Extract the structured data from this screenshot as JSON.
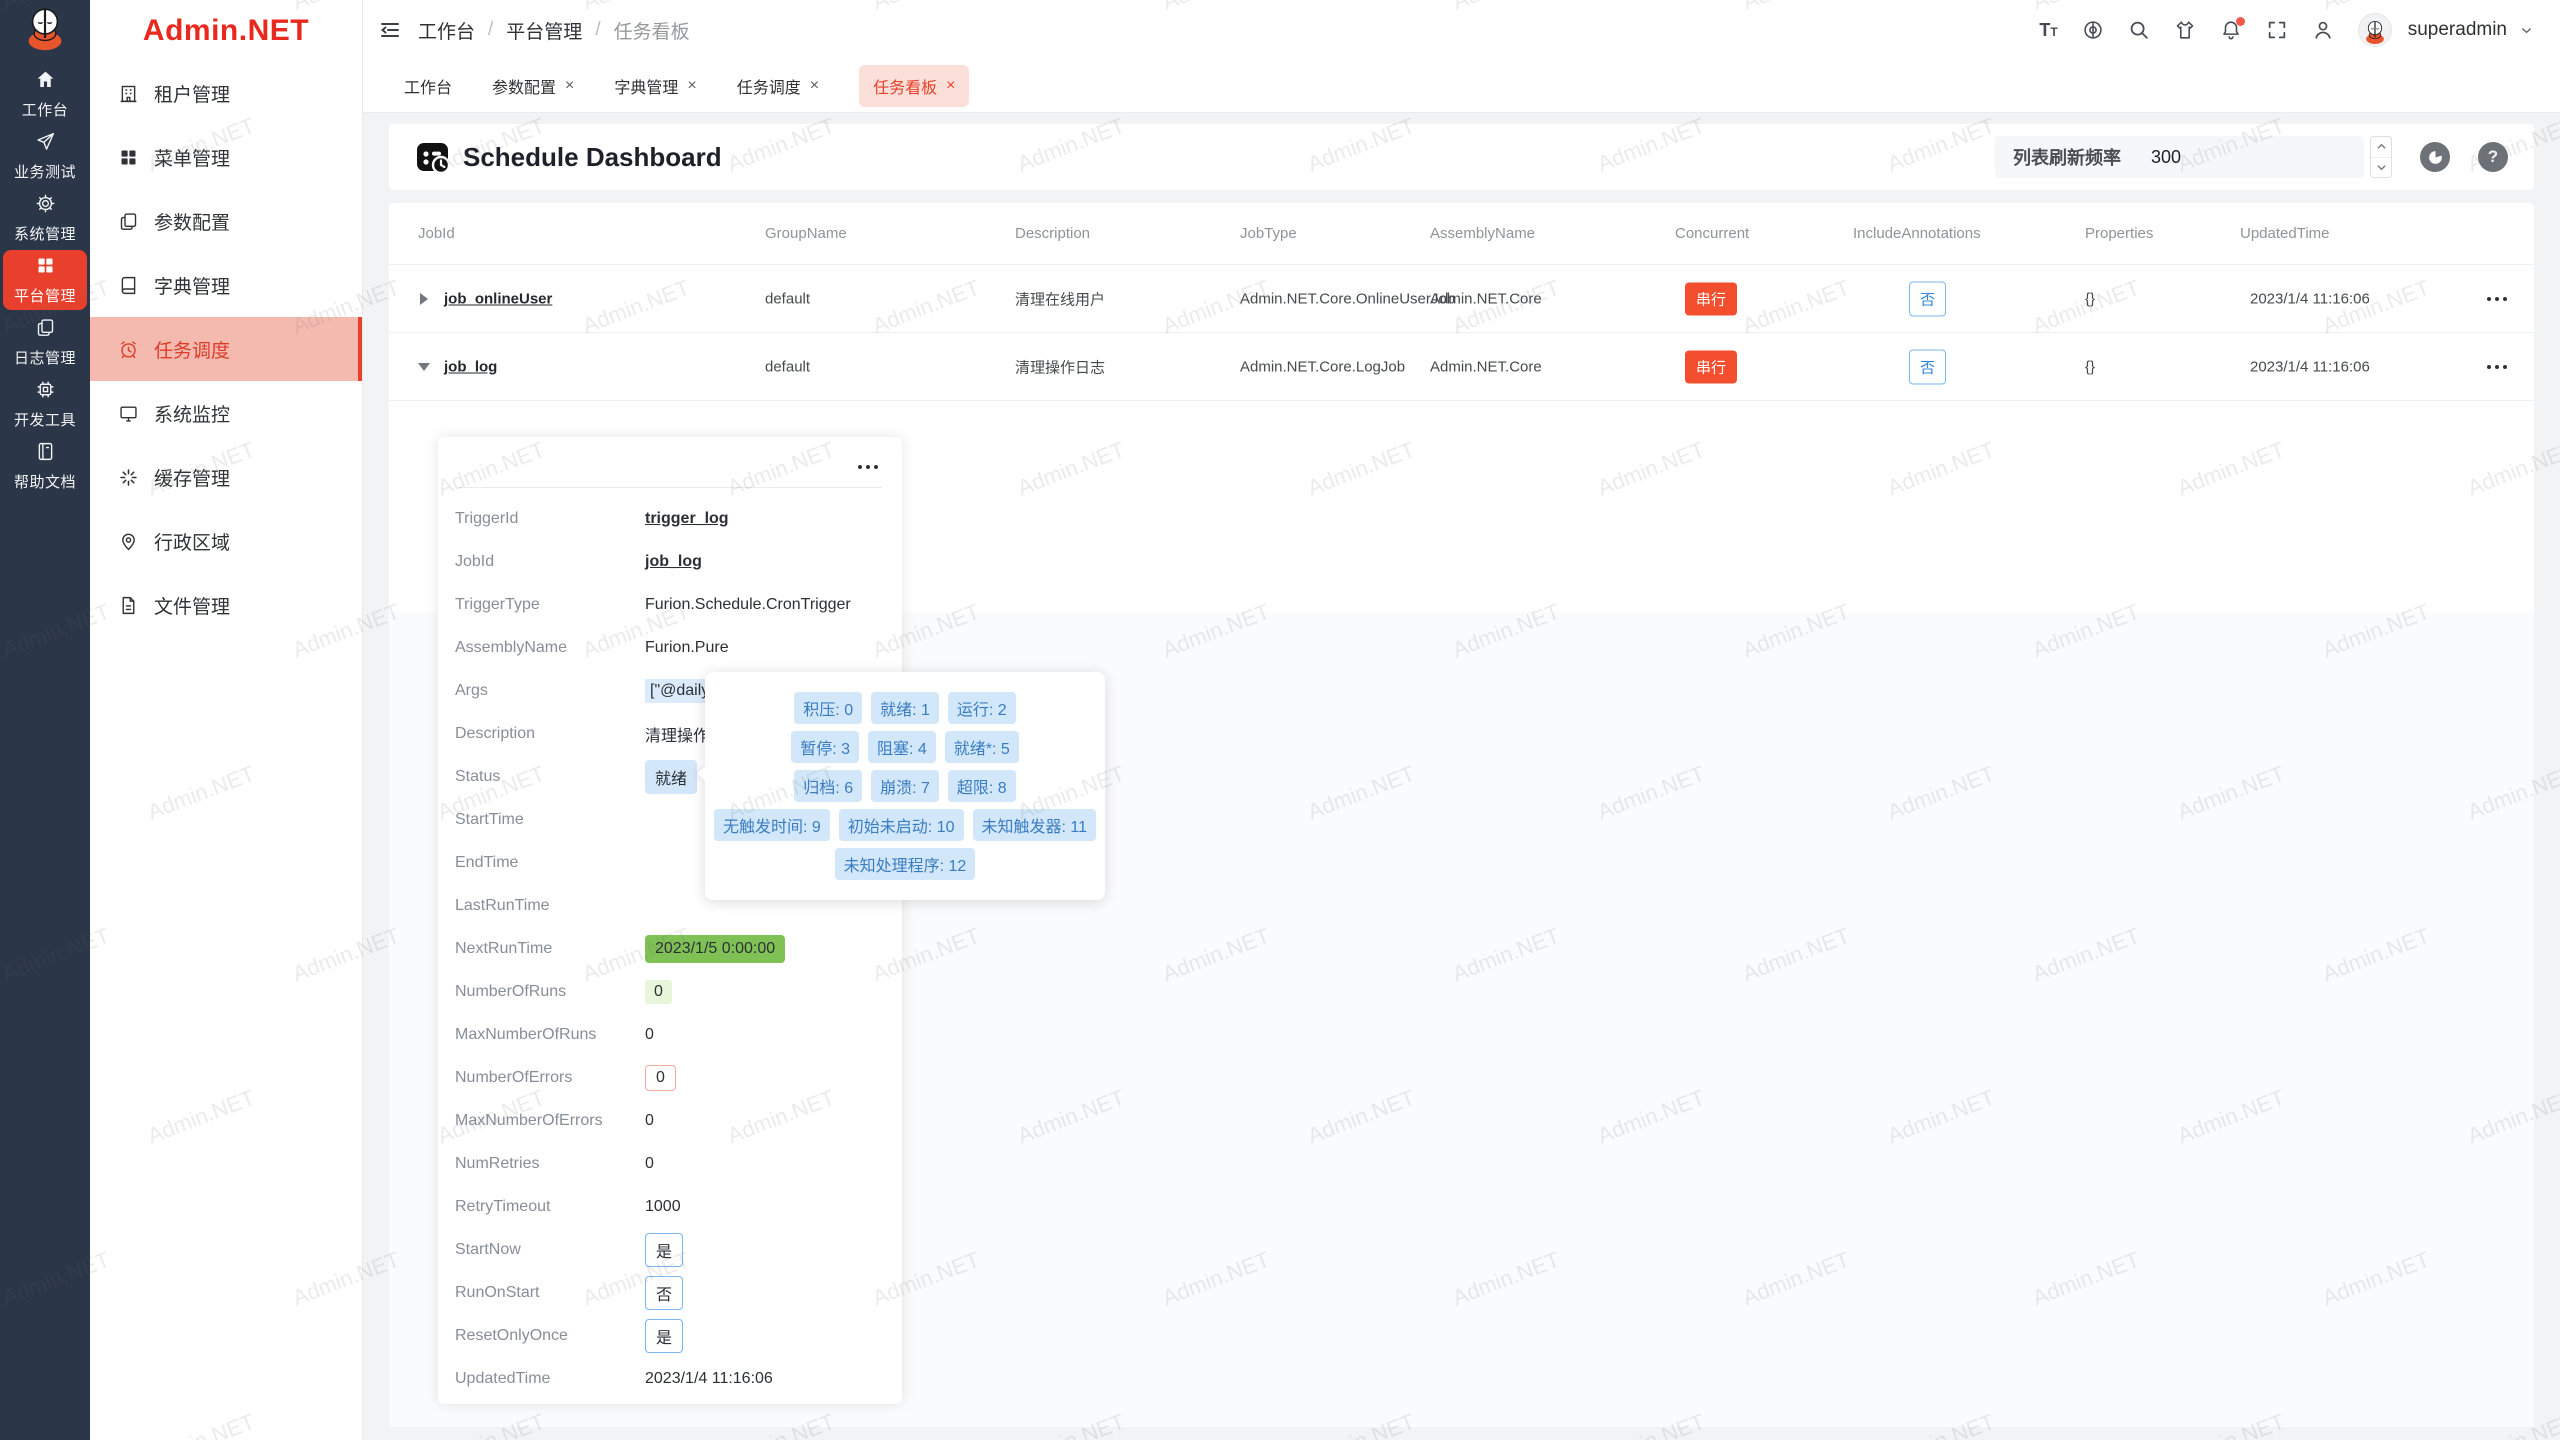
{
  "watermark": {
    "text": "Admin.NET"
  },
  "colors": {
    "accent": "#e8402c",
    "sidebar_dark": "#2b3648",
    "active_item_bg": "#f4bab0",
    "badge_blue_bg": "#d2e7fa",
    "badge_blue_text": "#3a7cc2",
    "badge_green": "#7fc155",
    "badge_red": "#f34e2e"
  },
  "sidebar_primary": {
    "items": [
      {
        "label": "工作台",
        "icon": "home",
        "active": false
      },
      {
        "label": "业务测试",
        "icon": "send",
        "active": false
      },
      {
        "label": "系统管理",
        "icon": "gear",
        "active": false
      },
      {
        "label": "平台管理",
        "icon": "grid",
        "active": true
      },
      {
        "label": "日志管理",
        "icon": "copy",
        "active": false
      },
      {
        "label": "开发工具",
        "icon": "cpu",
        "active": false
      },
      {
        "label": "帮助文档",
        "icon": "notebook",
        "active": false
      }
    ]
  },
  "sidebar_secondary": {
    "logo": "Admin.NET",
    "items": [
      {
        "label": "租户管理",
        "icon": "building",
        "active": false
      },
      {
        "label": "菜单管理",
        "icon": "grid",
        "active": false
      },
      {
        "label": "参数配置",
        "icon": "copy",
        "active": false
      },
      {
        "label": "字典管理",
        "icon": "dictionary-book",
        "active": false
      },
      {
        "label": "任务调度",
        "icon": "alarm-clock",
        "active": true
      },
      {
        "label": "系统监控",
        "icon": "monitor",
        "active": false
      },
      {
        "label": "缓存管理",
        "icon": "cache",
        "active": false
      },
      {
        "label": "行政区域",
        "icon": "location",
        "active": false
      },
      {
        "label": "文件管理",
        "icon": "file",
        "active": false
      }
    ]
  },
  "header": {
    "breadcrumb": [
      "工作台",
      "平台管理",
      "任务看板"
    ],
    "user": "superadmin"
  },
  "tabs": [
    {
      "label": "工作台",
      "closable": false,
      "active": false
    },
    {
      "label": "参数配置",
      "closable": true,
      "active": false
    },
    {
      "label": "字典管理",
      "closable": true,
      "active": false
    },
    {
      "label": "任务调度",
      "closable": true,
      "active": false
    },
    {
      "label": "任务看板",
      "closable": true,
      "active": true
    }
  ],
  "toolbar": {
    "title": "Schedule Dashboard",
    "refresh_label": "列表刷新频率",
    "refresh_value": "300"
  },
  "table": {
    "columns": [
      "JobId",
      "GroupName",
      "Description",
      "JobType",
      "AssemblyName",
      "Concurrent",
      "IncludeAnnotations",
      "Properties",
      "UpdatedTime"
    ],
    "rows": [
      {
        "jobId": "job_onlineUser",
        "groupName": "default",
        "description": "清理在线用户",
        "jobType": "Admin.NET.Core.OnlineUserJob",
        "assemblyName": "Admin.NET.Core",
        "concurrent": "串行",
        "includeAnnotations": "否",
        "properties": "{}",
        "updatedTime": "2023/1/4 11:16:06",
        "expanded": false
      },
      {
        "jobId": "job_log",
        "groupName": "default",
        "description": "清理操作日志",
        "jobType": "Admin.NET.Core.LogJob",
        "assemblyName": "Admin.NET.Core",
        "concurrent": "串行",
        "includeAnnotations": "否",
        "properties": "{}",
        "updatedTime": "2023/1/4 11:16:06",
        "expanded": true
      }
    ]
  },
  "detail": {
    "rows": [
      {
        "label": "TriggerId",
        "value": "trigger_log",
        "type": "link"
      },
      {
        "label": "JobId",
        "value": "job_log",
        "type": "link"
      },
      {
        "label": "TriggerType",
        "value": "Furion.Schedule.CronTrigger",
        "type": "text"
      },
      {
        "label": "AssemblyName",
        "value": "Furion.Pure",
        "type": "text"
      },
      {
        "label": "Args",
        "value": "[\"@daily",
        "type": "code"
      },
      {
        "label": "Description",
        "value": "清理操作日志",
        "type": "text"
      },
      {
        "label": "Status",
        "value": "就绪",
        "type": "badge-blue"
      },
      {
        "label": "StartTime",
        "value": "",
        "type": "text"
      },
      {
        "label": "EndTime",
        "value": "",
        "type": "text"
      },
      {
        "label": "LastRunTime",
        "value": "",
        "type": "text"
      },
      {
        "label": "NextRunTime",
        "value": "2023/1/5 0:00:00",
        "type": "badge-green-solid"
      },
      {
        "label": "NumberOfRuns",
        "value": "0",
        "type": "badge-green-light"
      },
      {
        "label": "MaxNumberOfRuns",
        "value": "0",
        "type": "text"
      },
      {
        "label": "NumberOfErrors",
        "value": "0",
        "type": "badge-red-outline"
      },
      {
        "label": "MaxNumberOfErrors",
        "value": "0",
        "type": "text"
      },
      {
        "label": "NumRetries",
        "value": "0",
        "type": "text"
      },
      {
        "label": "RetryTimeout",
        "value": "1000",
        "type": "text"
      },
      {
        "label": "StartNow",
        "value": "是",
        "type": "badge-blue-outline"
      },
      {
        "label": "RunOnStart",
        "value": "否",
        "type": "badge-blue-outline"
      },
      {
        "label": "ResetOnlyOnce",
        "value": "是",
        "type": "badge-blue-outline"
      },
      {
        "label": "UpdatedTime",
        "value": "2023/1/4 11:16:06",
        "type": "text"
      }
    ]
  },
  "status_tooltip": {
    "rows": [
      [
        "积压: 0",
        "就绪: 1",
        "运行: 2"
      ],
      [
        "暂停: 3",
        "阻塞: 4",
        "就绪*: 5"
      ],
      [
        "归档: 6",
        "崩溃: 7",
        "超限: 8"
      ],
      [
        "无触发时间: 9",
        "初始未启动: 10",
        "未知触发器: 11"
      ],
      [
        "未知处理程序: 12"
      ]
    ]
  }
}
